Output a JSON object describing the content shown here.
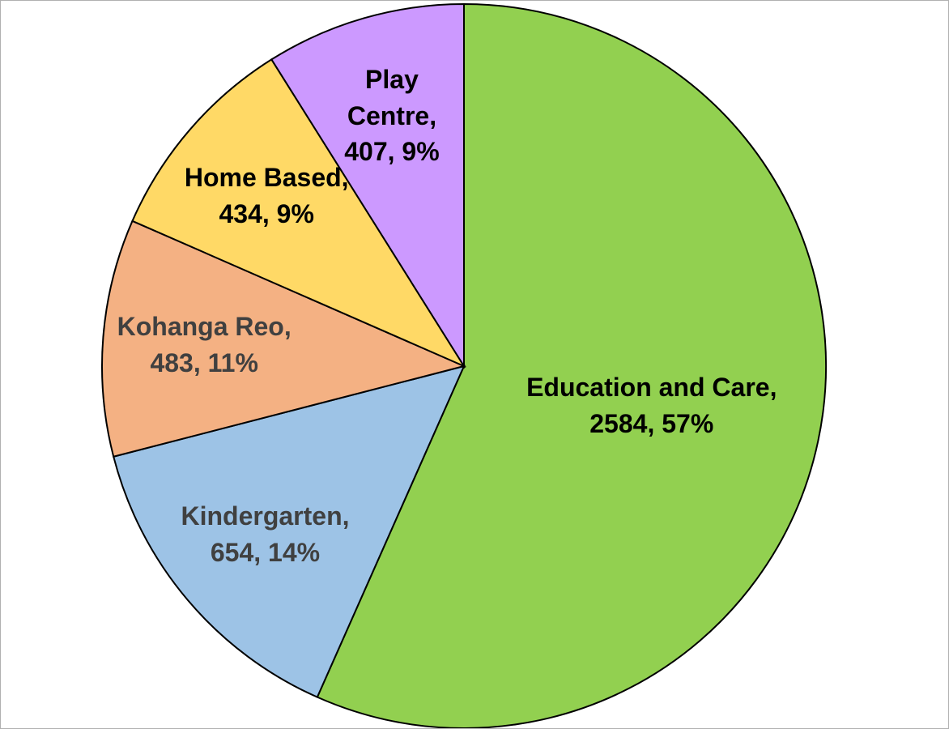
{
  "chart_data": {
    "type": "pie",
    "categories": [
      "Education and Care,",
      "Kindergarten,",
      "Kohanga Reo,",
      "Home Based,",
      "Play Centre,"
    ],
    "values": [
      2584,
      654,
      483,
      434,
      407
    ],
    "value_labels": [
      "2584, 57%",
      "654, 14%",
      "483, 11%",
      "434, 9%",
      "407, 9%"
    ],
    "colors": [
      "#92d050",
      "#9dc3e6",
      "#f4b183",
      "#ffd966",
      "#cc99ff"
    ],
    "label_colors": [
      "#000000",
      "#404040",
      "#404040",
      "#000000",
      "#000000"
    ]
  }
}
